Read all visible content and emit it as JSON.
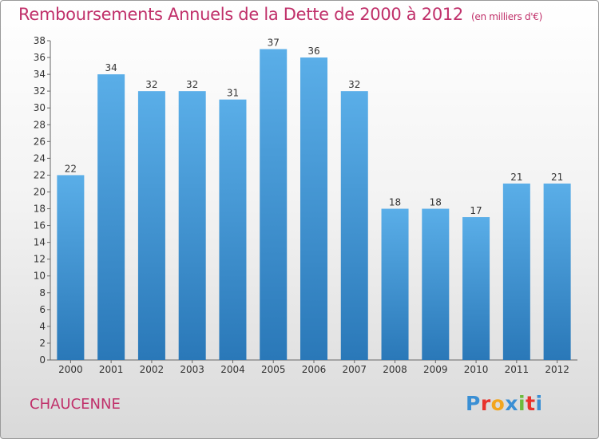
{
  "title": "Remboursements Annuels de la Dette de 2000 à 2012",
  "unit": "(en milliers d'€)",
  "place": "CHAUCENNE",
  "logo": {
    "text": "Proxiti",
    "letters": [
      "P",
      "r",
      "o",
      "x",
      "i",
      "t",
      "i"
    ],
    "colors": [
      "#3a8fd4",
      "#e8322c",
      "#f2a51e",
      "#3a8fd4",
      "#6dbb3c",
      "#e8322c",
      "#3a8fd4"
    ]
  },
  "colors": {
    "bar_top": "#5aaee8",
    "bar_bottom": "#2a78b8",
    "accent": "#c0306a"
  },
  "chart_data": {
    "type": "bar",
    "title": "Remboursements Annuels de la Dette de 2000 à 2012",
    "xlabel": "",
    "ylabel": "",
    "categories": [
      "2000",
      "2001",
      "2002",
      "2003",
      "2004",
      "2005",
      "2006",
      "2007",
      "2008",
      "2009",
      "2010",
      "2011",
      "2012"
    ],
    "values": [
      22,
      34,
      32,
      32,
      31,
      37,
      36,
      32,
      18,
      18,
      17,
      21,
      21
    ],
    "ylim": [
      0,
      38
    ],
    "yticks": [
      0,
      2,
      4,
      6,
      8,
      10,
      12,
      14,
      16,
      18,
      20,
      22,
      24,
      26,
      28,
      30,
      32,
      34,
      36,
      38
    ],
    "grid": false
  }
}
